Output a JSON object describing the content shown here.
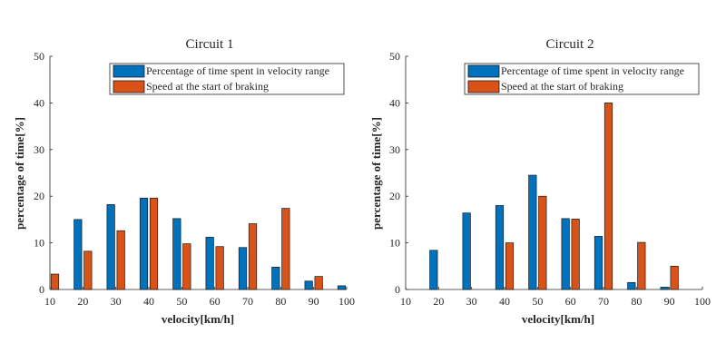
{
  "chart_data": [
    {
      "type": "bar",
      "title": "Circuit 1",
      "xlabel": "velocity[km/h]",
      "ylabel": "percentage of time[%]",
      "xlim": [
        10,
        100
      ],
      "ylim": [
        0,
        50
      ],
      "xticks": [
        10,
        20,
        30,
        40,
        50,
        60,
        70,
        80,
        90,
        100
      ],
      "yticks": [
        0,
        10,
        20,
        30,
        40,
        50
      ],
      "legend_position": "top-right",
      "series": [
        {
          "name": "Percentage of time spent in velocity range",
          "color": "#0072BD",
          "x": [
            10,
            20,
            30,
            40,
            50,
            60,
            70,
            80,
            90,
            100
          ],
          "values": [
            0,
            15.0,
            18.2,
            19.6,
            15.2,
            11.2,
            9.0,
            4.8,
            1.8,
            0.8
          ]
        },
        {
          "name": "Speed at the start of braking",
          "color": "#D95319",
          "x": [
            10,
            20,
            30,
            40,
            50,
            60,
            70,
            80,
            90,
            100
          ],
          "values": [
            3.3,
            8.2,
            12.6,
            19.6,
            9.8,
            9.2,
            14.1,
            17.4,
            2.8,
            0
          ]
        }
      ]
    },
    {
      "type": "bar",
      "title": "Circuit 2",
      "xlabel": "velocity[km/h]",
      "ylabel": "percentage of time[%]",
      "xlim": [
        10,
        100
      ],
      "ylim": [
        0,
        50
      ],
      "xticks": [
        10,
        20,
        30,
        40,
        50,
        60,
        70,
        80,
        90,
        100
      ],
      "yticks": [
        0,
        10,
        20,
        30,
        40,
        50
      ],
      "legend_position": "top-right",
      "series": [
        {
          "name": "Percentage of time spent in velocity range",
          "color": "#0072BD",
          "x": [
            20,
            30,
            40,
            50,
            60,
            70,
            80,
            90
          ],
          "values": [
            8.4,
            16.4,
            18.0,
            24.5,
            15.2,
            11.4,
            1.5,
            0.5
          ]
        },
        {
          "name": "Speed at the start of braking",
          "color": "#D95319",
          "x": [
            20,
            30,
            40,
            50,
            60,
            70,
            80,
            90
          ],
          "values": [
            0,
            0,
            10.0,
            20.0,
            15.1,
            40.0,
            10.1,
            5.0
          ]
        }
      ]
    }
  ]
}
